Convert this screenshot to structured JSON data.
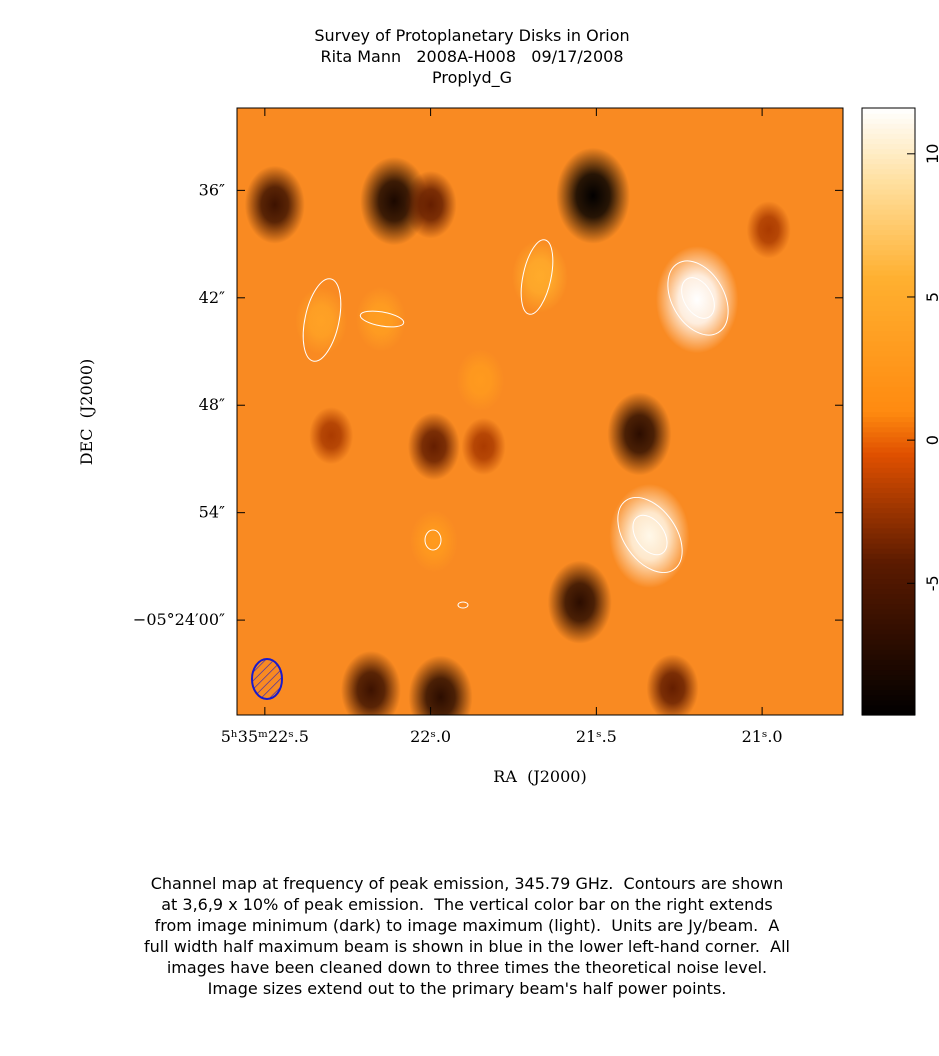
{
  "chart_data": {
    "type": "image-map",
    "title": "Survey of Protoplanetary Disks in Orion",
    "subtitle": [
      "Rita Mann   2008A-H008   09/17/2008",
      "Proplyd_G"
    ],
    "x_label": "RA  (J2000)",
    "y_label": "DEC  (J2000)",
    "xlim": [
      22.584,
      20.756
    ],
    "ylim": [
      31.4,
      65.3
    ],
    "xticks": [
      {
        "value": 22.5,
        "label": "5ʰ35ᵐ22ˢ.5"
      },
      {
        "value": 22.0,
        "label": "22ˢ.0"
      },
      {
        "value": 21.5,
        "label": "21ˢ.5"
      },
      {
        "value": 21.0,
        "label": "21ˢ.0"
      }
    ],
    "yticks": [
      {
        "value": 36,
        "label": "36″"
      },
      {
        "value": 42,
        "label": "42″"
      },
      {
        "value": 48,
        "label": "48″"
      },
      {
        "value": 54,
        "label": "54″"
      },
      {
        "value": 60,
        "label": "−05°24′00″"
      }
    ],
    "zlim": [
      -9.6,
      11.6
    ],
    "zticks": [
      -5,
      0,
      5,
      10
    ],
    "x": [
      21.196,
      21.34,
      21.67,
      22.33,
      22.15,
      21.99,
      21.51,
      22.11,
      22.47,
      22.0,
      21.37,
      21.99,
      21.55,
      21.97,
      22.18,
      21.27,
      22.3,
      21.84,
      21.85,
      20.98
    ],
    "y": [
      42.1,
      55.3,
      40.8,
      43.3,
      43.2,
      55.6,
      36.3,
      36.6,
      36.8,
      36.8,
      49.6,
      50.3,
      59.0,
      64.3,
      63.9,
      63.8,
      49.7,
      50.3,
      46.6,
      38.2
    ],
    "values": [
      11.6,
      11,
      5,
      4,
      3.5,
      3,
      -9.5,
      -8,
      -6,
      -4,
      -7,
      -4,
      -7,
      -7,
      -6,
      -4,
      -2,
      -2,
      3,
      -2
    ],
    "caption": [
      "Channel map at frequency of peak emission, 345.79 GHz.  Contours are shown",
      "at 3,6,9 x 10% of peak emission.  The vertical color bar on the right extends",
      "from image minimum (dark) to image maximum (light).  Units are Jy/beam.  A",
      "full width half maximum beam is shown in blue in the lower left-hand corner.  All",
      "images have been cleaned down to three times the theoretical noise level.",
      "Image sizes extend out to the primary beam's half power points."
    ]
  }
}
